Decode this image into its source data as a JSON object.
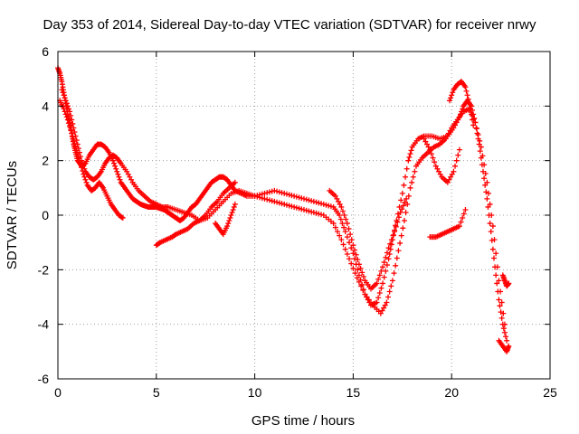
{
  "chart_data": {
    "type": "scatter",
    "title": "Day 353 of 2014, Sidereal Day-to-day VTEC variation (SDTVAR) for receiver nrwy",
    "xlabel": "GPS time / hours",
    "ylabel": "SDTVAR / TECUs",
    "xlim": [
      0,
      25
    ],
    "ylim": [
      -6,
      6
    ],
    "xticks": [
      0,
      5,
      10,
      15,
      20,
      25
    ],
    "yticks": [
      -6,
      -4,
      -2,
      0,
      2,
      4,
      6
    ],
    "x_tick_labels": [
      "0",
      "5",
      "10",
      "15",
      "20",
      "25"
    ],
    "y_tick_labels": [
      "-6",
      "-4",
      "-2",
      "0",
      "2",
      "4",
      "6"
    ],
    "grid": true,
    "marker": "+",
    "series": [
      {
        "name": "SDTVAR",
        "color": "#ff0000",
        "tracks": [
          {
            "x": [
              0.0,
              0.1,
              0.2,
              0.3,
              0.4,
              0.5,
              0.6,
              0.7,
              0.8,
              0.9,
              1.0,
              1.2,
              1.4,
              1.6,
              1.8,
              2.0,
              2.2,
              2.4,
              2.6,
              2.8,
              3.0,
              3.2,
              3.4,
              3.6,
              3.8,
              4.0,
              4.2,
              4.4,
              4.6,
              4.8,
              5.0,
              5.2,
              5.4,
              5.6,
              5.8,
              6.0,
              6.2,
              6.4,
              6.6,
              6.8,
              7.0,
              7.2,
              7.4,
              7.6,
              7.8,
              8.0,
              8.2,
              8.4,
              8.6,
              8.8,
              9.0,
              9.3,
              9.6,
              10.0,
              10.5,
              11.0,
              11.5,
              12.0,
              12.5,
              13.0,
              13.5,
              14.0,
              14.3,
              14.6,
              15.0,
              15.3,
              15.6,
              15.9,
              16.2,
              16.5,
              16.8,
              17.0,
              17.2,
              17.5,
              17.8,
              18.0,
              18.3,
              18.6,
              19.0,
              19.4,
              19.8,
              20.1,
              20.4,
              20.6,
              20.8,
              21.0,
              21.2,
              21.4,
              21.6,
              21.8,
              22.0,
              22.2,
              22.4,
              22.6,
              22.8
            ],
            "y": [
              5.4,
              5.2,
              4.9,
              4.5,
              4.1,
              3.7,
              3.4,
              3.0,
              2.6,
              2.3,
              2.0,
              1.8,
              1.9,
              2.2,
              2.4,
              2.6,
              2.6,
              2.5,
              2.3,
              2.0,
              1.6,
              1.2,
              1.0,
              0.8,
              0.6,
              0.5,
              0.4,
              0.35,
              0.3,
              0.3,
              0.3,
              0.25,
              0.2,
              0.1,
              0.0,
              -0.1,
              -0.2,
              -0.1,
              0.1,
              0.3,
              0.4,
              0.6,
              0.8,
              1.0,
              1.2,
              1.3,
              1.4,
              1.4,
              1.3,
              1.1,
              0.9,
              0.8,
              0.7,
              0.7,
              0.8,
              0.9,
              0.8,
              0.7,
              0.6,
              0.5,
              0.4,
              0.3,
              0.0,
              -0.6,
              -1.4,
              -2.2,
              -2.9,
              -3.3,
              -3.2,
              -2.5,
              -1.6,
              -0.9,
              -0.2,
              0.8,
              2.0,
              2.5,
              2.8,
              2.9,
              2.9,
              2.8,
              2.9,
              3.2,
              3.6,
              4.0,
              4.2,
              4.0,
              3.4,
              2.6,
              1.6,
              0.6,
              -0.6,
              -1.9,
              -3.1,
              -4.0,
              -4.6
            ]
          },
          {
            "x": [
              0.2,
              0.4,
              0.6,
              0.8,
              1.0,
              1.2,
              1.4,
              1.6,
              1.8,
              2.0,
              2.2,
              2.4,
              2.6,
              2.8,
              3.0,
              3.2,
              3.5,
              3.8,
              4.1,
              4.4,
              4.7,
              5.0,
              5.3,
              5.6,
              6.0,
              6.4,
              6.8,
              7.2,
              7.6,
              8.0,
              8.4,
              8.8,
              9.2,
              9.6,
              10.0,
              10.5,
              11.0,
              11.5,
              12.0,
              12.5,
              13.0,
              13.5,
              14.0,
              14.4,
              14.8,
              15.2,
              15.6,
              16.0,
              16.4,
              16.7,
              17.0,
              17.3,
              17.6,
              17.9,
              18.2,
              18.5,
              18.8,
              19.1,
              19.4,
              19.7,
              20.0,
              20.3,
              20.6,
              20.9,
              21.2,
              21.5,
              21.8,
              22.1,
              22.4,
              22.7
            ],
            "y": [
              4.6,
              4.2,
              3.8,
              3.2,
              2.6,
              2.0,
              1.6,
              1.4,
              1.3,
              1.4,
              1.6,
              1.9,
              2.1,
              2.2,
              2.1,
              1.9,
              1.6,
              1.2,
              0.9,
              0.7,
              0.5,
              0.4,
              0.3,
              0.3,
              0.2,
              0.1,
              0.0,
              -0.2,
              -0.1,
              0.2,
              0.5,
              0.8,
              0.9,
              0.8,
              0.7,
              0.6,
              0.5,
              0.4,
              0.3,
              0.2,
              0.1,
              0.0,
              -0.3,
              -0.9,
              -1.6,
              -2.3,
              -2.9,
              -3.3,
              -3.6,
              -3.2,
              -2.4,
              -1.3,
              -0.2,
              1.0,
              1.8,
              2.1,
              2.3,
              2.5,
              2.6,
              2.8,
              3.2,
              3.5,
              3.8,
              3.9,
              3.4,
              2.5,
              1.2,
              -0.4,
              -2.4,
              -4.0
            ]
          },
          {
            "x": [
              0.1,
              0.3,
              0.5,
              0.7,
              0.9,
              1.1,
              1.3,
              1.5,
              1.7,
              1.9,
              2.1,
              2.3,
              2.5,
              2.7,
              2.9,
              3.1,
              3.3
            ],
            "y": [
              4.2,
              3.9,
              3.5,
              3.0,
              2.5,
              2.0,
              1.5,
              1.1,
              0.9,
              1.0,
              1.2,
              1.0,
              0.7,
              0.4,
              0.2,
              0.0,
              -0.1
            ]
          },
          {
            "x": [
              5.0,
              5.2,
              5.5,
              5.8,
              6.0,
              6.3,
              6.6,
              6.9,
              7.2,
              7.5,
              7.8,
              8.1,
              8.4,
              8.7,
              9.0
            ],
            "y": [
              -1.1,
              -1.0,
              -0.9,
              -0.8,
              -0.7,
              -0.6,
              -0.5,
              -0.3,
              -0.2,
              0.0,
              0.3,
              0.5,
              0.8,
              1.0,
              1.2
            ]
          },
          {
            "x": [
              8.0,
              8.2,
              8.4,
              8.6,
              8.8,
              9.0
            ],
            "y": [
              -0.3,
              -0.5,
              -0.7,
              -0.4,
              0.0,
              0.4
            ]
          },
          {
            "x": [
              13.8,
              14.1,
              14.4,
              14.7,
              15.0,
              15.3,
              15.6,
              15.9,
              16.2,
              16.5,
              16.8,
              17.1,
              17.4,
              17.7
            ],
            "y": [
              0.9,
              0.7,
              0.3,
              -0.3,
              -1.1,
              -1.8,
              -2.4,
              -2.7,
              -2.5,
              -1.9,
              -1.2,
              -0.6,
              0.1,
              0.6
            ]
          },
          {
            "x": [
              18.9,
              19.2,
              19.5,
              19.8,
              20.1,
              20.4,
              20.7
            ],
            "y": [
              -0.8,
              -0.8,
              -0.7,
              -0.6,
              -0.5,
              -0.4,
              0.2
            ]
          },
          {
            "x": [
              18.6,
              18.9,
              19.2,
              19.5,
              19.8,
              20.1,
              20.4
            ],
            "y": [
              2.8,
              2.4,
              1.8,
              1.4,
              1.2,
              1.6,
              2.4
            ]
          },
          {
            "x": [
              19.9,
              20.1,
              20.3,
              20.5,
              20.7,
              20.9,
              21.1
            ],
            "y": [
              4.2,
              4.6,
              4.8,
              4.9,
              4.7,
              4.1,
              3.3
            ]
          },
          {
            "x": [
              22.4,
              22.6,
              22.8,
              22.9
            ],
            "y": [
              -4.6,
              -4.8,
              -5.0,
              -4.8
            ]
          },
          {
            "x": [
              22.6,
              22.7,
              22.8,
              22.9
            ],
            "y": [
              -2.2,
              -2.4,
              -2.6,
              -2.5
            ]
          }
        ]
      }
    ]
  }
}
